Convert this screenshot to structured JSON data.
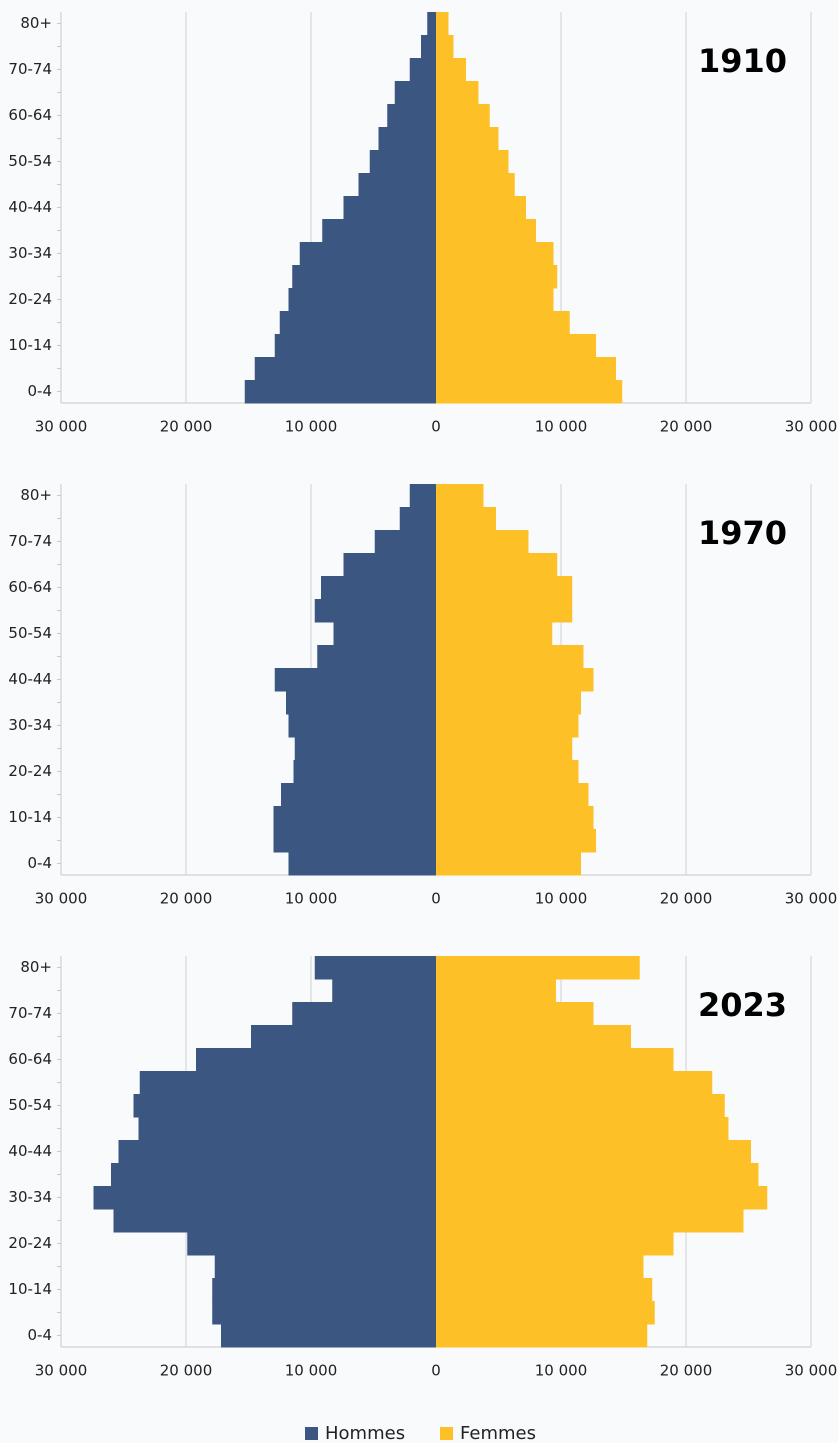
{
  "chart_data": [
    {
      "type": "bar",
      "orientation": "horizontal",
      "title": "1910",
      "categories": [
        "0-4",
        null,
        "10-14",
        null,
        "20-24",
        null,
        "30-34",
        null,
        "40-44",
        null,
        "50-54",
        null,
        "60-64",
        null,
        "70-74",
        null,
        "80+"
      ],
      "series": [
        {
          "name": "Hommes",
          "color": "#3b5680",
          "values": [
            -15300,
            -14500,
            -12900,
            -12500,
            -11800,
            -11500,
            -10900,
            -9100,
            -7400,
            -6200,
            -5300,
            -4600,
            -3900,
            -3300,
            -2100,
            -1200,
            -700
          ]
        },
        {
          "name": "Femmes",
          "color": "#fdc127",
          "values": [
            14900,
            14400,
            12800,
            10700,
            9400,
            9700,
            9400,
            8000,
            7200,
            6300,
            5800,
            5000,
            4300,
            3400,
            2400,
            1400,
            1000
          ]
        }
      ],
      "xlim": [
        -30000,
        30000
      ],
      "xticks": [
        {
          "value": -30000,
          "label": "30 000"
        },
        {
          "value": -20000,
          "label": "20 000"
        },
        {
          "value": -10000,
          "label": "10 000"
        },
        0,
        {
          "value": 10000,
          "label": "10 000"
        },
        {
          "value": 20000,
          "label": "20 000"
        },
        {
          "value": 30000,
          "label": "30 000"
        }
      ],
      "grid": true
    },
    {
      "type": "bar",
      "orientation": "horizontal",
      "title": "1970",
      "categories": [
        "0-4",
        null,
        "10-14",
        null,
        "20-24",
        null,
        "30-34",
        null,
        "40-44",
        null,
        "50-54",
        null,
        "60-64",
        null,
        "70-74",
        null,
        "80+"
      ],
      "series": [
        {
          "name": "Hommes",
          "color": "#3b5680",
          "values": [
            -11800,
            -13000,
            -13000,
            -12400,
            -11400,
            -11300,
            -11800,
            -12000,
            -12900,
            -9500,
            -8200,
            -9700,
            -9200,
            -7400,
            -4900,
            -2900,
            -2100
          ]
        },
        {
          "name": "Femmes",
          "color": "#fdc127",
          "values": [
            11600,
            12800,
            12600,
            12200,
            11400,
            10900,
            11400,
            11600,
            12600,
            11800,
            9300,
            10900,
            10900,
            9700,
            7400,
            4800,
            3800
          ]
        }
      ],
      "xlim": [
        -30000,
        30000
      ],
      "xticks": [
        {
          "value": -30000,
          "label": "30 000"
        },
        {
          "value": -20000,
          "label": "20 000"
        },
        {
          "value": -10000,
          "label": "10 000"
        },
        0,
        {
          "value": 10000,
          "label": "10 000"
        },
        {
          "value": 20000,
          "label": "20 000"
        },
        {
          "value": 30000,
          "label": "30 000"
        }
      ],
      "grid": true
    },
    {
      "type": "bar",
      "orientation": "horizontal",
      "title": "2023",
      "categories": [
        "0-4",
        null,
        "10-14",
        null,
        "20-24",
        null,
        "30-34",
        null,
        "40-44",
        null,
        "50-54",
        null,
        "60-64",
        null,
        "70-74",
        null,
        "80+"
      ],
      "series": [
        {
          "name": "Hommes",
          "color": "#3b5680",
          "values": [
            -17200,
            -17900,
            -17900,
            -17700,
            -19900,
            -25800,
            -27400,
            -26000,
            -25400,
            -23800,
            -24200,
            -23700,
            -19200,
            -14800,
            -11500,
            -8300,
            -9700
          ]
        },
        {
          "name": "Femmes",
          "color": "#fdc127",
          "values": [
            16900,
            17500,
            17300,
            16600,
            19000,
            24600,
            26500,
            25800,
            25200,
            23400,
            23100,
            22100,
            19000,
            15600,
            12600,
            9600,
            16300
          ]
        }
      ],
      "xlim": [
        -30000,
        30000
      ],
      "xticks": [
        {
          "value": -30000,
          "label": "30 000"
        },
        {
          "value": -20000,
          "label": "20 000"
        },
        {
          "value": -10000,
          "label": "10 000"
        },
        0,
        {
          "value": 10000,
          "label": "10 000"
        },
        {
          "value": 20000,
          "label": "20 000"
        },
        {
          "value": 30000,
          "label": "30 000"
        }
      ],
      "grid": true
    }
  ]
}
